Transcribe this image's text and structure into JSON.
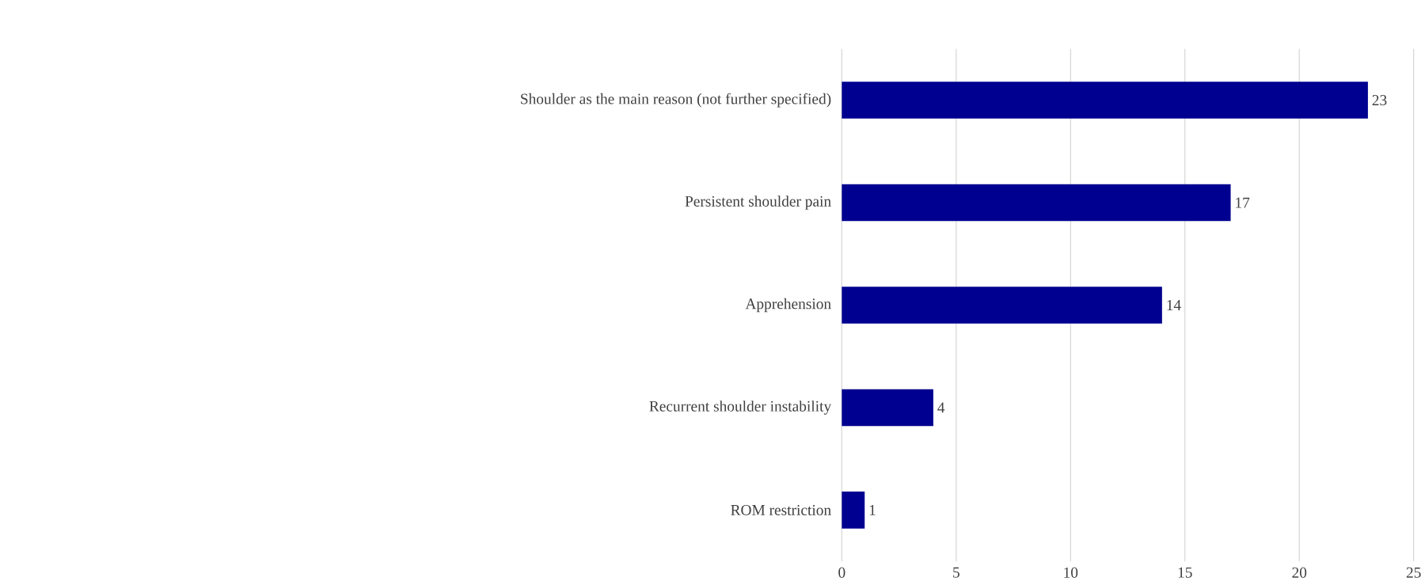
{
  "chart_data": {
    "type": "bar",
    "orientation": "horizontal",
    "categories": [
      "Shoulder as the main reason (not further specified)",
      "Persistent shoulder pain",
      "Apprehension",
      "Recurrent shoulder instability",
      "ROM restriction"
    ],
    "values": [
      23,
      17,
      14,
      4,
      1
    ],
    "color": "#000090",
    "xlim": [
      0,
      25
    ],
    "xticks": [
      0,
      5,
      10,
      15,
      20,
      25
    ],
    "grid": "x",
    "data_labels": true
  }
}
